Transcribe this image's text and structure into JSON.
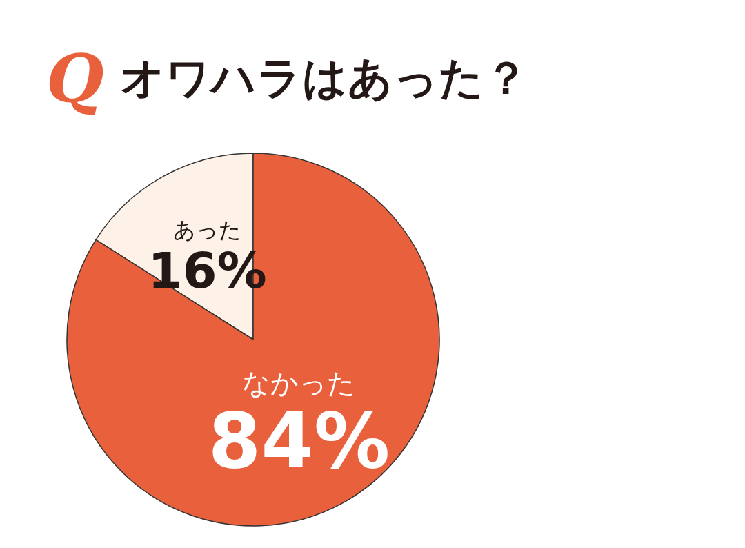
{
  "chart_data": {
    "type": "pie",
    "title": "Q オワハラはあった？",
    "categories": [
      "あった",
      "なかった"
    ],
    "values": [
      16,
      84
    ],
    "value_labels": [
      "16%",
      "84%"
    ],
    "colors": [
      "#fdf1e8",
      "#e8603c"
    ],
    "legend": false
  }
}
